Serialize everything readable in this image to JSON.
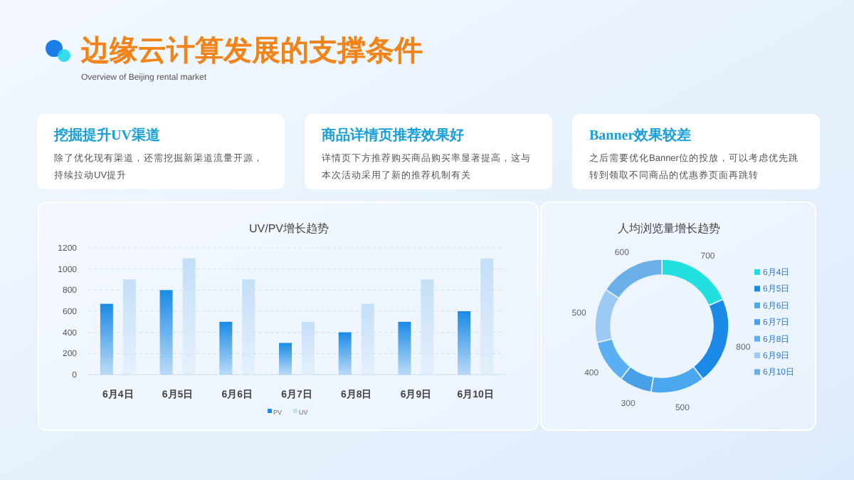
{
  "chart_data": [
    {
      "type": "other",
      "title": "边缘云计算发展的支撑条件",
      "subtitle": "Overview of Beijing rental market",
      "annotations": [
        "挖掘提升UV渠道",
        "除了优化现有渠道，还需挖掘新渠道流量开源，持续拉动UV提升",
        "商品详情页推荐效果好",
        "详情页下方推荐购买商品购买率显著提高，这与本次活动采用了新的推荐机制有关",
        "Banner效果较差",
        "之后需要优化Banner位的投放，可以考虑优先跳转到领取不同商品的优惠券页面再跳转"
      ]
    },
    {
      "type": "bar",
      "title": "UV/PV增长趋势",
      "categories": [
        "6月4日",
        "6月5日",
        "6月6日",
        "6月7日",
        "6月8日",
        "6月9日",
        "6月10日"
      ],
      "series": [
        {
          "name": "PV",
          "color": "#1a8ae6",
          "values": [
            670,
            800,
            500,
            300,
            400,
            500,
            600
          ]
        },
        {
          "name": "UV",
          "color": "#c4dff8",
          "values": [
            900,
            1100,
            900,
            500,
            670,
            900,
            1100
          ]
        }
      ],
      "ylim": [
        0,
        1200
      ],
      "yticks": [
        0,
        200,
        400,
        600,
        800,
        1000,
        1200
      ],
      "grid": "y",
      "legend": "bottom"
    },
    {
      "type": "donut",
      "title": "人均浏览量增长趋势",
      "categories": [
        "6月4日",
        "6月5日",
        "6月6日",
        "6月7日",
        "6月8日",
        "6月9日",
        "6月10日"
      ],
      "values": [
        700,
        800,
        500,
        300,
        400,
        500,
        600
      ],
      "colors": [
        "#22e0e0",
        "#1a8ae6",
        "#4aa8ee",
        "#4aa0e8",
        "#5ab0f0",
        "#9ccaf4",
        "#6aaeea"
      ],
      "data_labels": true,
      "legend": "right"
    }
  ]
}
